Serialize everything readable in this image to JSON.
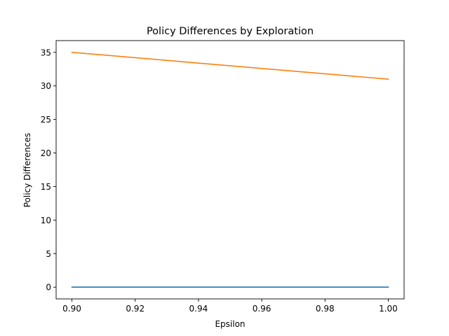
{
  "chart_data": {
    "type": "line",
    "title": "Policy Differences by Exploration",
    "xlabel": "Epsilon",
    "ylabel": "Policy Differences",
    "x": [
      0.9,
      1.0
    ],
    "xlim": [
      0.895,
      1.005
    ],
    "ylim": [
      -1.75,
      36.75
    ],
    "xticks": [
      "0.90",
      "0.92",
      "0.94",
      "0.96",
      "0.98",
      "1.00"
    ],
    "yticks": [
      "0",
      "5",
      "10",
      "15",
      "20",
      "25",
      "30",
      "35"
    ],
    "grid": false,
    "legend": "none",
    "series": [
      {
        "values": [
          0,
          0
        ],
        "color": "#1f77b4"
      },
      {
        "values": [
          35,
          31
        ],
        "color": "#ff7f0e"
      }
    ]
  }
}
